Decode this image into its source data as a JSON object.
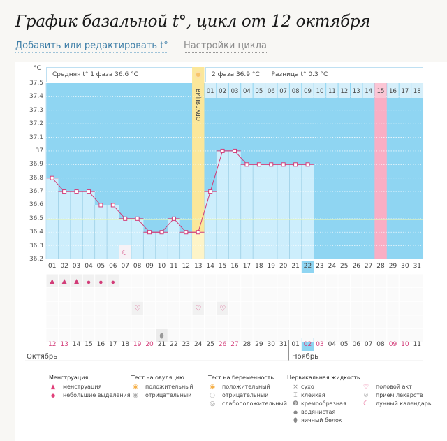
{
  "header": {
    "title": "График базальной t°, цикл от 12 октября",
    "edit_link": "Добавить или редактировать t°",
    "settings_link": "Настройки цикла"
  },
  "phase_bar": {
    "phase1": "Средняя t° 1 фаза 36.6 °C",
    "phase2": "2 фаза 36.9 °C",
    "difference": "Разница t° 0.3 °C"
  },
  "ovulation_label": "ОВУЛЯЦИЯ",
  "axis": {
    "unit": "°C"
  },
  "months": {
    "first": "Октябрь",
    "second": "Ноябрь"
  },
  "colors": {
    "plot_bg": "#8fd5f2",
    "bar_fill": "#cdeefc",
    "line": "#d23c78",
    "ovulation": "#fbe79a",
    "predicted_period": "#f9aec4",
    "today": "#8fd5f2",
    "coverline": "#e6f5b8",
    "weekend_red": "#d23c78"
  },
  "chart_data": {
    "type": "line",
    "title": "График базальной t°, цикл от 12 октября",
    "xlabel": "",
    "ylabel": "°C",
    "ylim": [
      36.2,
      37.5
    ],
    "yticks": [
      "37.5",
      "37.4",
      "37.3",
      "37.2",
      "37.1",
      "37",
      "36.9",
      "36.8",
      "36.7",
      "36.6",
      "36.5",
      "36.4",
      "36.3",
      "36.2"
    ],
    "grid": true,
    "coverline": 36.5,
    "cycle_days": [
      "01",
      "02",
      "03",
      "04",
      "05",
      "06",
      "07",
      "08",
      "09",
      "10",
      "11",
      "12",
      "13",
      "14",
      "15",
      "16",
      "17",
      "18",
      "19",
      "20",
      "21",
      "22",
      "23",
      "24",
      "25",
      "26",
      "27",
      "28",
      "29",
      "30",
      "31"
    ],
    "calendar_dates": [
      "12",
      "13",
      "14",
      "15",
      "16",
      "17",
      "18",
      "19",
      "20",
      "21",
      "22",
      "23",
      "24",
      "25",
      "26",
      "27",
      "28",
      "29",
      "30",
      "31",
      "01",
      "02",
      "03",
      "04",
      "05",
      "06",
      "07",
      "08",
      "09",
      "10",
      "11"
    ],
    "weekend_dates_idx": [
      0,
      1,
      7,
      8,
      14,
      15,
      21,
      22,
      28,
      29
    ],
    "today_idx": 21,
    "ovulation_idx": 12,
    "phase2_days": [
      "01",
      "02",
      "03",
      "04",
      "05",
      "06",
      "07",
      "08",
      "09",
      "10",
      "11",
      "12",
      "13",
      "14",
      "15",
      "16",
      "17",
      "18"
    ],
    "predicted_period_idx": 27,
    "series": [
      {
        "name": "Базальная температура",
        "values": [
          36.8,
          36.7,
          36.7,
          36.7,
          36.6,
          36.6,
          36.5,
          36.5,
          36.4,
          36.4,
          36.5,
          36.4,
          36.4,
          36.7,
          37.0,
          37.0,
          36.9,
          36.9,
          36.9,
          36.9,
          36.9,
          36.9
        ]
      }
    ],
    "symptoms": {
      "menstruation_heavy": [
        0,
        1,
        2
      ],
      "menstruation_light": [
        3,
        4,
        5
      ],
      "intercourse": [
        7,
        12,
        14
      ],
      "egg_white": [
        9
      ],
      "lunar_calendar": [
        6
      ]
    }
  },
  "legend": {
    "menstruation": {
      "title": "Менструация",
      "items": [
        "менструация",
        "небольшие выделения"
      ]
    },
    "ovulation_test": {
      "title": "Тест на овуляцию",
      "items": [
        "положительный",
        "отрицательный"
      ]
    },
    "pregnancy_test": {
      "title": "Тест на беременность",
      "items": [
        "положительный",
        "отрицательный",
        "слабоположительный"
      ]
    },
    "cervical_fluid": {
      "title": "Цервикальная жидкость",
      "items": [
        "сухо",
        "клейкая",
        "кремообразная",
        "водянистая",
        "яичный белок"
      ]
    },
    "other": {
      "items": [
        "половой акт",
        "прием лекарств",
        "лунный календарь"
      ]
    }
  }
}
